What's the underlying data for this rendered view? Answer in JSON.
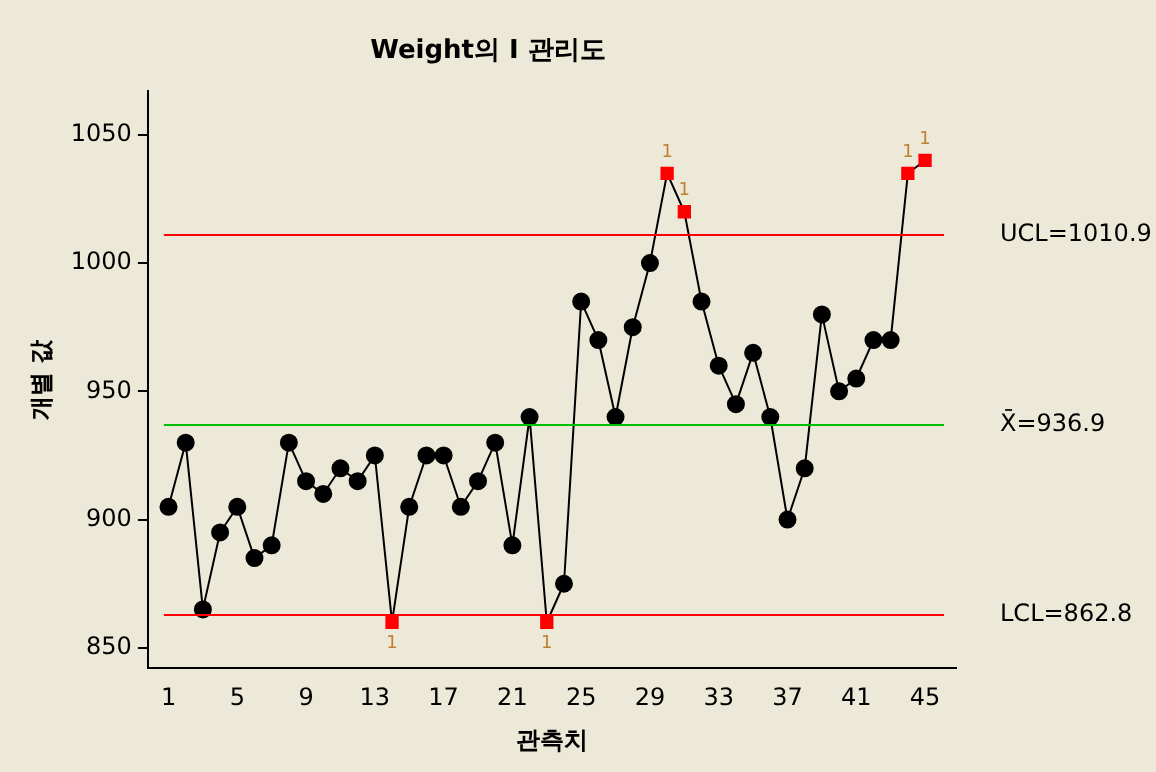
{
  "chart_data": {
    "type": "line",
    "title": "Weight의 I 관리도",
    "xlabel": "관측치",
    "ylabel": "개별 값",
    "x": [
      1,
      2,
      3,
      4,
      5,
      6,
      7,
      8,
      9,
      10,
      11,
      12,
      13,
      14,
      15,
      16,
      17,
      18,
      19,
      20,
      21,
      22,
      23,
      24,
      25,
      26,
      27,
      28,
      29,
      30,
      31,
      32,
      33,
      34,
      35,
      36,
      37,
      38,
      39,
      40,
      41,
      42,
      43,
      44,
      45
    ],
    "series": [
      {
        "color": "#000000",
        "values": [
          905,
          930,
          865,
          895,
          905,
          885,
          890,
          930,
          915,
          910,
          920,
          915,
          925,
          860,
          905,
          925,
          925,
          905,
          915,
          930,
          890,
          940,
          860,
          875,
          985,
          970,
          940,
          975,
          1000,
          1035,
          1020,
          985,
          960,
          945,
          965,
          940,
          900,
          920,
          980,
          950,
          955,
          970,
          970,
          1035,
          1040
        ],
        "colors": [
          "#000000",
          "#000000",
          "#000000",
          "#000000",
          "#000000",
          "#000000",
          "#000000",
          "#000000",
          "#000000",
          "#000000",
          "#000000",
          "#000000",
          "#000000",
          "#ff0000",
          "#000000",
          "#000000",
          "#000000",
          "#000000",
          "#000000",
          "#000000",
          "#000000",
          "#000000",
          "#ff0000",
          "#000000",
          "#000000",
          "#000000",
          "#000000",
          "#000000",
          "#000000",
          "#ff0000",
          "#ff0000",
          "#000000",
          "#000000",
          "#000000",
          "#000000",
          "#000000",
          "#000000",
          "#000000",
          "#000000",
          "#000000",
          "#000000",
          "#000000",
          "#000000",
          "#ff0000",
          "#ff0000"
        ]
      }
    ],
    "xlim": [
      -0.2,
      46.8
    ],
    "xticks": [
      1,
      5,
      9,
      13,
      17,
      21,
      25,
      29,
      33,
      37,
      41,
      45
    ],
    "ylim": [
      842,
      1067
    ],
    "yticks": [
      850,
      900,
      950,
      1000,
      1050
    ],
    "ref_lines": [
      {
        "axis": "y",
        "value": 1010.9,
        "label": "UCL=1010.9",
        "color": "#ff0000"
      },
      {
        "axis": "y",
        "value": 936.9,
        "label": "X̄=936.9",
        "color": "#00c000"
      },
      {
        "axis": "y",
        "value": 862.8,
        "label": "LCL=862.8",
        "color": "#ff0000"
      }
    ],
    "annotations": [
      {
        "text": "1",
        "x": 14,
        "y": 860
      },
      {
        "text": "1",
        "x": 23,
        "y": 860
      },
      {
        "text": "1",
        "x": 30,
        "y": 1035
      },
      {
        "text": "1",
        "x": 31,
        "y": 1020
      },
      {
        "text": "1",
        "x": 44,
        "y": 1035
      },
      {
        "text": "1",
        "x": 45,
        "y": 1040
      }
    ],
    "grid": false,
    "legend": false,
    "marker": "circle",
    "line_style": "solid"
  }
}
